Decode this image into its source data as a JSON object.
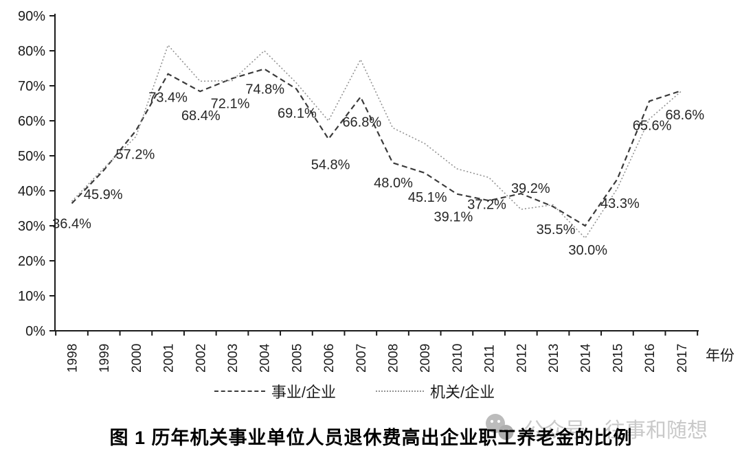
{
  "figure": {
    "caption": "图 1  历年机关事业单位人员退休费高出企业职工养老金的比例"
  },
  "watermark": {
    "icon": "wechat-icon",
    "prefix": "公众号",
    "account": "往事和随想"
  },
  "chart_data": {
    "type": "line",
    "xlabel": "年份",
    "ylim": [
      0,
      90
    ],
    "ytick_step": 10,
    "ytick_labels": [
      "0%",
      "10%",
      "20%",
      "30%",
      "40%",
      "50%",
      "60%",
      "70%",
      "80%",
      "90%"
    ],
    "grid": false,
    "legend_position": "bottom",
    "x": [
      "1998",
      "1999",
      "2000",
      "2001",
      "2002",
      "2003",
      "2004",
      "2005",
      "2006",
      "2007",
      "2008",
      "2009",
      "2010",
      "2011",
      "2012",
      "2013",
      "2014",
      "2015",
      "2016",
      "2017"
    ],
    "series": [
      {
        "name": "事业/企业",
        "line_style": "dashed",
        "color": "#3a3a3a",
        "values": [
          36.4,
          45.9,
          57.2,
          73.4,
          68.4,
          72.1,
          74.8,
          69.1,
          54.8,
          66.8,
          48.0,
          45.1,
          39.1,
          37.2,
          39.2,
          35.5,
          30.0,
          43.3,
          65.6,
          68.6
        ],
        "point_labels": [
          "36.4%",
          "45.9%",
          "57.2%",
          "73.4%",
          "68.4%",
          "72.1%",
          "74.8%",
          "69.1%",
          "54.8%",
          "66.8%",
          "48.0%",
          "45.1%",
          "39.1%",
          "37.2%",
          "39.2%",
          "35.5%",
          "30.0%",
          "43.3%",
          "65.6%",
          "68.6%"
        ]
      },
      {
        "name": "机关/企业",
        "line_style": "dotted",
        "color": "#919191",
        "values": [
          37.0,
          46.5,
          55.5,
          81.6,
          71.3,
          71.5,
          80.0,
          70.8,
          60.0,
          77.5,
          58.0,
          53.5,
          46.3,
          43.8,
          34.7,
          36.0,
          26.5,
          40.6,
          60.5,
          68.5
        ]
      }
    ]
  }
}
